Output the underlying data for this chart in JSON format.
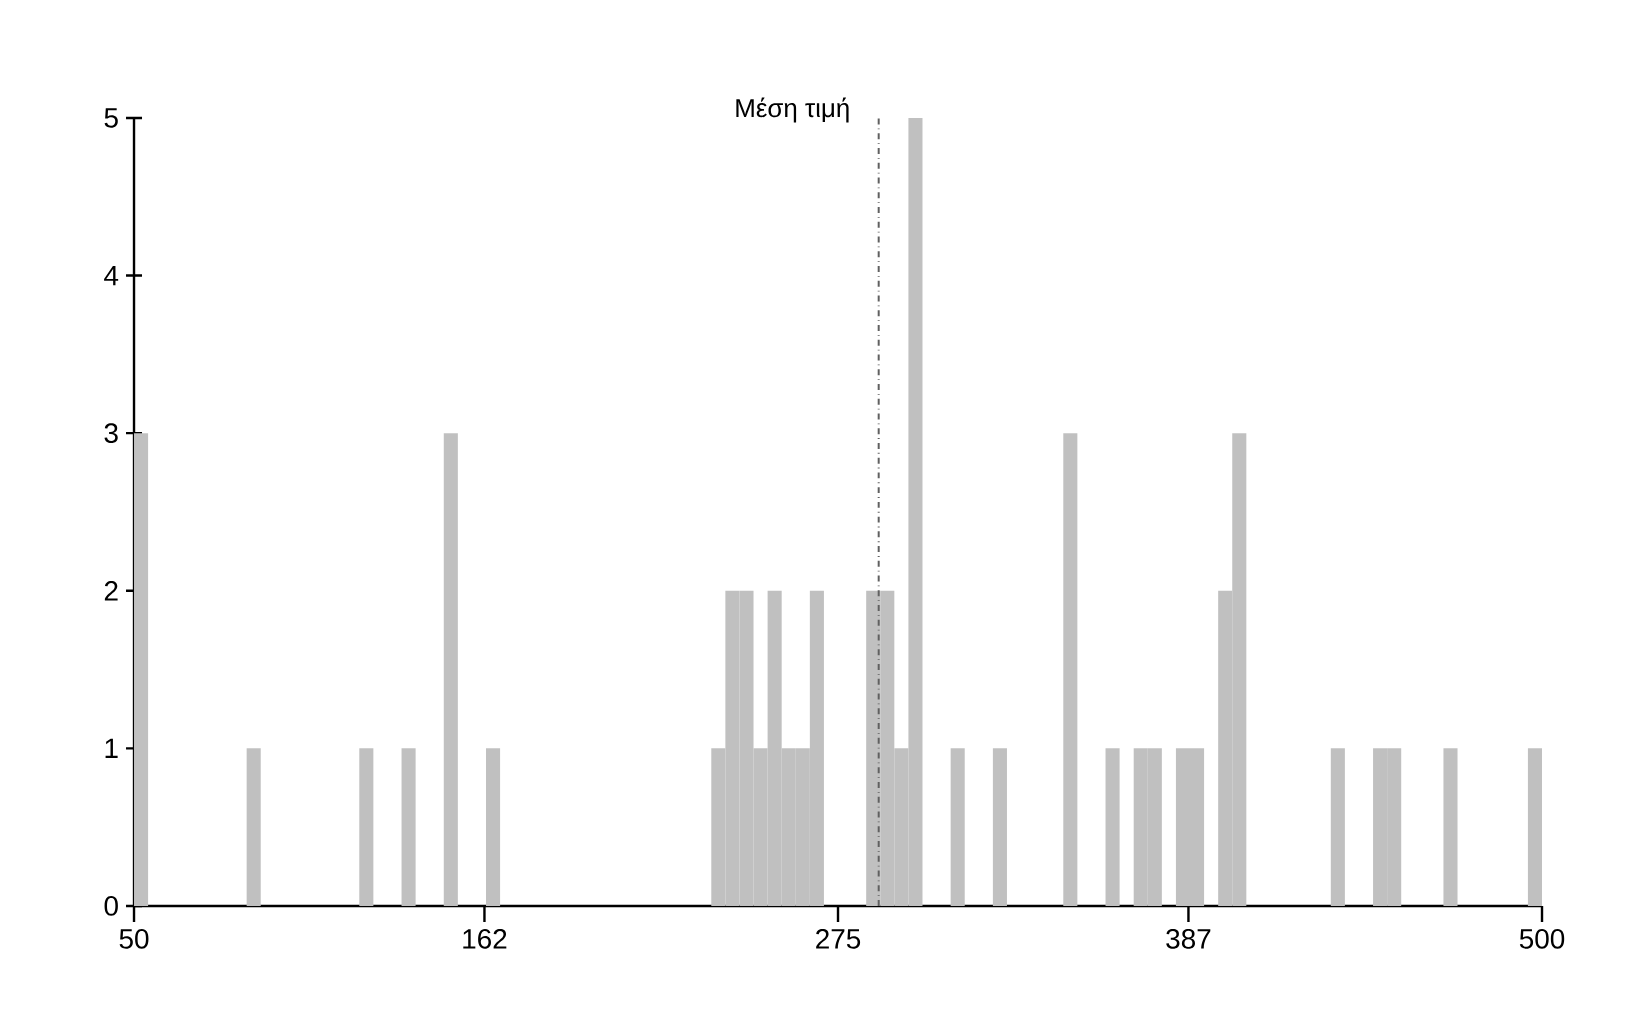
{
  "chart_data": {
    "type": "histogram",
    "bins": [
      50,
      54.5,
      59,
      63.5,
      68,
      72.5,
      77,
      81.5,
      86,
      90.5,
      95,
      99.5,
      104,
      108.5,
      113,
      117.5,
      122,
      126.5,
      131,
      135.5,
      140,
      144.5,
      149,
      153.5,
      158,
      162.5,
      167,
      171.5,
      176,
      180.5,
      185,
      189.5,
      194,
      198.5,
      203,
      207.5,
      212,
      216.5,
      221,
      225.5,
      230,
      234.5,
      239,
      243.5,
      248,
      252.5,
      257,
      261.5,
      266,
      270.5,
      275,
      279.5,
      284,
      288.5,
      293,
      297.5,
      302,
      306.5,
      311,
      315.5,
      320,
      324.5,
      329,
      333.5,
      338,
      342.5,
      347,
      351.5,
      356,
      360.5,
      365,
      369.5,
      374,
      378.5,
      383,
      387.5,
      392,
      396.5,
      401,
      405.5,
      410,
      414.5,
      419,
      423.5,
      428,
      432.5,
      437,
      441.5,
      446,
      450.5,
      455,
      459.5,
      464,
      468.5,
      473,
      477.5,
      482,
      486.5,
      491,
      495.5,
      500
    ],
    "values": [
      3,
      0,
      0,
      0,
      0,
      0,
      0,
      0,
      1,
      0,
      0,
      0,
      0,
      0,
      0,
      0,
      1,
      0,
      0,
      1,
      0,
      0,
      3,
      0,
      0,
      1,
      0,
      0,
      0,
      0,
      0,
      0,
      0,
      0,
      0,
      0,
      0,
      0,
      0,
      0,
      0,
      1,
      2,
      2,
      1,
      2,
      1,
      1,
      2,
      0,
      0,
      0,
      2,
      2,
      1,
      5,
      0,
      0,
      1,
      0,
      0,
      1,
      0,
      0,
      0,
      0,
      3,
      0,
      0,
      1,
      0,
      1,
      1,
      0,
      1,
      1,
      0,
      2,
      3,
      0,
      0,
      0,
      0,
      0,
      0,
      1,
      0,
      0,
      1,
      1,
      0,
      0,
      0,
      1,
      0,
      0,
      0,
      0,
      0,
      1
    ],
    "color": "#c0c0c0",
    "xlim": [
      50,
      500
    ],
    "xticks": [
      50,
      162,
      275,
      387,
      500
    ],
    "ylim": [
      0,
      5
    ],
    "yticks": [
      0,
      1,
      2,
      3,
      4,
      5
    ],
    "grid": false,
    "ref_lines": [
      {
        "axis": "x",
        "value": 288,
        "label": "Μέση τιμή",
        "color": "#606060",
        "line_style": "dashdot"
      }
    ]
  }
}
